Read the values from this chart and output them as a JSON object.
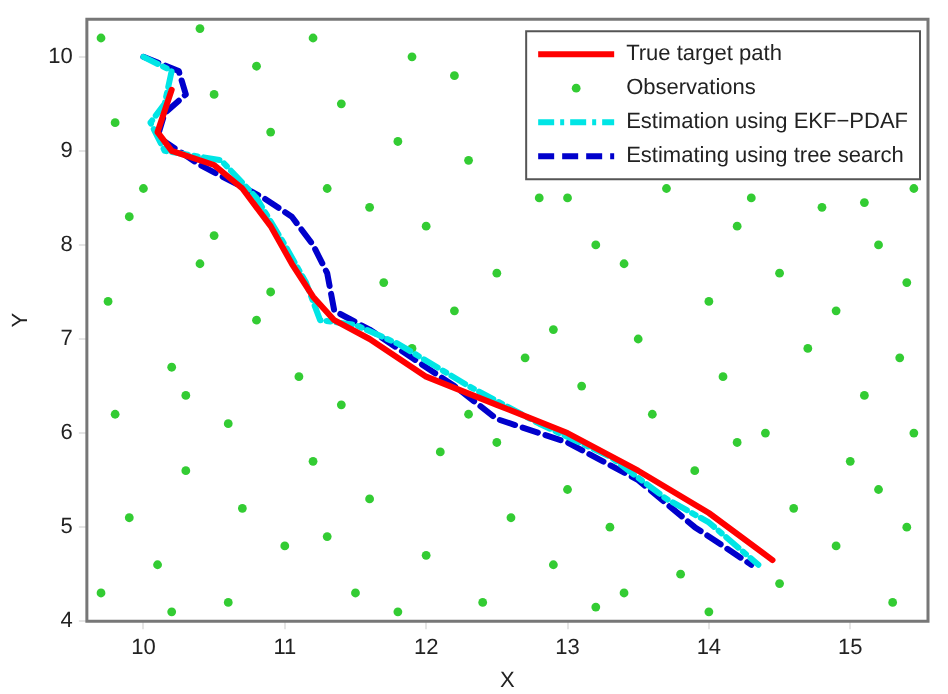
{
  "chart_data": {
    "type": "line",
    "xlabel": "X",
    "ylabel": "Y",
    "xlim": [
      9.6,
      15.55
    ],
    "ylim": [
      4,
      10.4
    ],
    "xticks": [
      10,
      11,
      12,
      13,
      14,
      15
    ],
    "yticks": [
      4,
      5,
      6,
      7,
      8,
      9,
      10
    ],
    "grid": false,
    "legend": "top right",
    "series": [
      {
        "name": "True target path",
        "type": "line",
        "color": "#ff0000",
        "line_style": "solid",
        "marker": "none",
        "x": [
          10.2,
          10.1,
          10.2,
          10.5,
          10.7,
          10.9,
          11.05,
          11.2,
          11.35,
          11.6,
          12.0,
          12.5,
          13.0,
          13.5,
          14.0,
          14.45
        ],
        "values": [
          9.65,
          9.2,
          9.0,
          8.85,
          8.6,
          8.2,
          7.8,
          7.45,
          7.2,
          7.0,
          6.6,
          6.3,
          6.0,
          5.6,
          5.15,
          4.65
        ]
      },
      {
        "name": "Observations",
        "type": "scatter",
        "color": "#33cc33",
        "marker": "circle",
        "x": [
          9.7,
          9.9,
          9.8,
          9.75,
          9.9,
          9.8,
          9.7,
          10.1,
          10.3,
          10.2,
          10.4,
          10.0,
          10.5,
          10.4,
          10.6,
          10.7,
          10.6,
          10.8,
          10.5,
          10.9,
          10.8,
          11.0,
          11.2,
          11.1,
          10.9,
          11.3,
          11.4,
          11.2,
          11.5,
          11.6,
          11.4,
          11.7,
          11.6,
          11.8,
          11.9,
          12.0,
          12.1,
          11.9,
          12.2,
          12.0,
          12.3,
          12.2,
          12.4,
          12.6,
          12.5,
          12.7,
          12.5,
          12.8,
          12.9,
          13.0,
          13.1,
          12.9,
          13.2,
          13.0,
          13.4,
          13.3,
          13.6,
          13.5,
          13.4,
          13.7,
          13.8,
          14.0,
          13.9,
          14.1,
          14.0,
          14.2,
          14.3,
          14.5,
          14.6,
          14.4,
          14.7,
          14.5,
          14.8,
          14.9,
          15.0,
          15.1,
          14.9,
          15.2,
          15.1,
          15.3,
          15.4,
          15.45,
          15.35,
          15.4,
          15.45,
          10.2,
          11.8,
          13.2,
          10.3,
          11.3,
          12.3,
          14.2,
          15.2
        ],
        "values": [
          4.3,
          5.1,
          6.2,
          7.4,
          8.3,
          9.3,
          10.2,
          4.6,
          5.6,
          6.7,
          7.8,
          8.6,
          9.6,
          10.3,
          4.2,
          5.2,
          6.1,
          7.2,
          8.1,
          9.2,
          9.9,
          4.8,
          5.7,
          6.6,
          7.5,
          8.6,
          9.5,
          10.2,
          4.3,
          5.3,
          6.3,
          7.6,
          8.4,
          9.1,
          10.0,
          4.7,
          5.8,
          6.9,
          7.3,
          8.2,
          8.9,
          9.8,
          4.2,
          5.1,
          5.9,
          6.8,
          7.7,
          8.5,
          4.6,
          5.4,
          6.5,
          7.1,
          8.0,
          8.5,
          4.3,
          5.0,
          6.2,
          7.0,
          7.8,
          8.6,
          4.5,
          4.1,
          5.6,
          6.6,
          7.4,
          8.2,
          8.5,
          4.4,
          5.2,
          6.0,
          6.9,
          7.7,
          8.4,
          4.8,
          5.7,
          6.4,
          7.3,
          8.0,
          8.45,
          4.2,
          5.0,
          6.0,
          6.8,
          7.6,
          8.6,
          4.1,
          4.1,
          4.15,
          6.4,
          4.9,
          6.2,
          5.9,
          5.4
        ]
      },
      {
        "name": "Estimation using EKF−PDAF",
        "type": "line",
        "color": "#00e5e5",
        "line_style": "dashdot",
        "marker": "none",
        "x": [
          10.0,
          10.2,
          10.15,
          10.05,
          10.15,
          10.55,
          10.8,
          11.0,
          11.15,
          11.25,
          11.5,
          11.8,
          12.3,
          12.8,
          13.3,
          13.7,
          14.0,
          14.35
        ],
        "values": [
          10.0,
          9.85,
          9.5,
          9.3,
          9.0,
          8.9,
          8.5,
          8.0,
          7.6,
          7.2,
          7.15,
          6.95,
          6.5,
          6.1,
          5.75,
          5.3,
          5.05,
          4.6
        ]
      },
      {
        "name": "Estimating using tree search",
        "type": "line",
        "color": "#0000cc",
        "line_style": "dashed",
        "marker": "none",
        "x": [
          10.0,
          10.25,
          10.3,
          10.15,
          10.1,
          10.4,
          10.85,
          11.05,
          11.2,
          11.3,
          11.35,
          11.6,
          11.9,
          12.2,
          12.5,
          13.0,
          13.5,
          13.9,
          14.3
        ],
        "values": [
          10.0,
          9.85,
          9.6,
          9.4,
          9.15,
          8.85,
          8.5,
          8.3,
          8.0,
          7.7,
          7.3,
          7.1,
          6.8,
          6.5,
          6.15,
          5.9,
          5.5,
          5.0,
          4.6
        ]
      }
    ]
  }
}
